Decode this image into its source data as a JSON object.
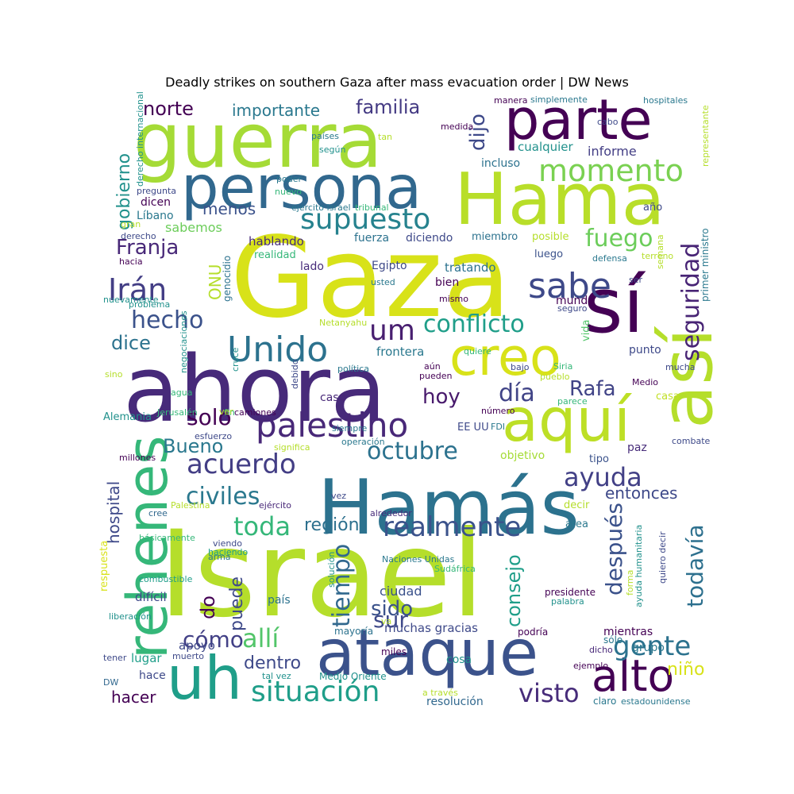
{
  "title": "Deadly strikes on southern Gaza after mass evacuation order | DW News",
  "words": [
    {
      "t": "Israel",
      "c": "#b5de2b"
    },
    {
      "t": "Gaza",
      "c": "#d8e219"
    },
    {
      "t": "ahora",
      "c": "#472a7a"
    },
    {
      "t": "Hamás",
      "c": "#2c728e"
    },
    {
      "t": "ataque",
      "c": "#3b528b"
    },
    {
      "t": "guerra",
      "c": "#a5db36"
    },
    {
      "t": "Hama",
      "c": "#b8de29"
    },
    {
      "t": "persona",
      "c": "#31688e"
    },
    {
      "t": "parte",
      "c": "#440154"
    },
    {
      "t": "sí",
      "c": "#440154"
    },
    {
      "t": "así",
      "c": "#b5de2b"
    },
    {
      "t": "aquí",
      "c": "#bddf26"
    },
    {
      "t": "creo",
      "c": "#d8e219"
    },
    {
      "t": "rehenes",
      "c": "#35b779"
    },
    {
      "t": "uh",
      "c": "#1f9e89"
    },
    {
      "t": "alto",
      "c": "#440154"
    },
    {
      "t": "palestino",
      "c": "#482878"
    },
    {
      "t": "Unido",
      "c": "#2c728e"
    },
    {
      "t": "seguridad",
      "c": "#482475"
    },
    {
      "t": "supuesto",
      "c": "#26828e"
    },
    {
      "t": "momento",
      "c": "#7ad151"
    },
    {
      "t": "sabe",
      "c": "#3e4989"
    },
    {
      "t": "situación",
      "c": "#1f9e89"
    },
    {
      "t": "realmente",
      "c": "#3b528b"
    },
    {
      "t": "conflicto",
      "c": "#1f9e89"
    },
    {
      "t": "um",
      "c": "#481f70"
    },
    {
      "t": "Irán",
      "c": "#433e85"
    },
    {
      "t": "Franja",
      "c": "#482878"
    },
    {
      "t": "acuerdo",
      "c": "#433e85"
    },
    {
      "t": "civiles",
      "c": "#2a788e"
    },
    {
      "t": "ayuda",
      "c": "#424086"
    },
    {
      "t": "gente",
      "c": "#2c728e"
    },
    {
      "t": "visto",
      "c": "#472c7a"
    },
    {
      "t": "todavía",
      "c": "#2d708e"
    },
    {
      "t": "después",
      "c": "#3b528b"
    },
    {
      "t": "toda",
      "c": "#35b779"
    },
    {
      "t": "tiempo",
      "c": "#31688e"
    },
    {
      "t": "allí",
      "c": "#52c569"
    },
    {
      "t": "hecho",
      "c": "#3b528b"
    },
    {
      "t": "octubre",
      "c": "#2c728e"
    },
    {
      "t": "día",
      "c": "#414487"
    },
    {
      "t": "fuego",
      "c": "#6ccd5a"
    },
    {
      "t": "norte",
      "c": "#440154"
    },
    {
      "t": "familia",
      "c": "#443a83"
    },
    {
      "t": "dijo",
      "c": "#3e4989"
    },
    {
      "t": "hoy",
      "c": "#481a6c"
    },
    {
      "t": "solo",
      "c": "#440154"
    },
    {
      "t": "Rafa",
      "c": "#414487"
    },
    {
      "t": "dice",
      "c": "#2c728e"
    },
    {
      "t": "Bueno",
      "c": "#2a788e"
    },
    {
      "t": "cómo",
      "c": "#424086"
    },
    {
      "t": "región",
      "c": "#2d708e"
    },
    {
      "t": "sur",
      "c": "#3e4989"
    },
    {
      "t": "sido",
      "c": "#3b528b"
    },
    {
      "t": "consejo",
      "c": "#1f9e89"
    },
    {
      "t": "entonces",
      "c": "#3e4989"
    },
    {
      "t": "importante",
      "c": "#2a788e"
    },
    {
      "t": "gobierno",
      "c": "#21918c"
    },
    {
      "t": "puede",
      "c": "#3e4989"
    },
    {
      "t": "hospital",
      "c": "#3e4989"
    },
    {
      "t": "do",
      "c": "#440154"
    },
    {
      "t": "dentro",
      "c": "#3e4989"
    },
    {
      "t": "hacer",
      "c": "#440154"
    },
    {
      "t": "niño",
      "c": "#d8e219"
    },
    {
      "t": "informe",
      "c": "#433e85"
    },
    {
      "t": "menos",
      "c": "#3b528b"
    },
    {
      "t": "ONU",
      "c": "#b5de2b"
    },
    {
      "t": "sabemos",
      "c": "#6ccd5a"
    },
    {
      "t": "resolución",
      "c": "#31688e"
    },
    {
      "t": "ciudad",
      "c": "#3b528b"
    },
    {
      "t": "muchas gracias",
      "c": "#3e4989"
    },
    {
      "t": "EE UU",
      "c": "#3e4989"
    },
    {
      "t": "caso",
      "c": "#482878"
    },
    {
      "t": "frontera",
      "c": "#2a788e"
    },
    {
      "t": "Egipto",
      "c": "#3e4989"
    },
    {
      "t": "tratando",
      "c": "#2c728e"
    },
    {
      "t": "hablando",
      "c": "#472c7a"
    },
    {
      "t": "realidad",
      "c": "#35b779"
    },
    {
      "t": "lado",
      "c": "#472c7a"
    },
    {
      "t": "fuerza",
      "c": "#2c728e"
    },
    {
      "t": "diciendo",
      "c": "#3e4989"
    },
    {
      "t": "miembro",
      "c": "#2c728e"
    },
    {
      "t": "posible",
      "c": "#b5de2b"
    },
    {
      "t": "luego",
      "c": "#3b528b"
    },
    {
      "t": "bien",
      "c": "#440154"
    },
    {
      "t": "mundo",
      "c": "#440154"
    },
    {
      "t": "vida",
      "c": "#52c569"
    },
    {
      "t": "punto",
      "c": "#3e4989"
    },
    {
      "t": "paz",
      "c": "#472c7a"
    },
    {
      "t": "tipo",
      "c": "#3b528b"
    },
    {
      "t": "objetivo",
      "c": "#a5db36"
    },
    {
      "t": "casa",
      "c": "#c0df25"
    },
    {
      "t": "decir",
      "c": "#b5de2b"
    },
    {
      "t": "área",
      "c": "#2a788e"
    },
    {
      "t": "incluso",
      "c": "#2c728e"
    },
    {
      "t": "cualquier",
      "c": "#21918c"
    },
    {
      "t": "año",
      "c": "#3e4989"
    },
    {
      "t": "dicen",
      "c": "#440154"
    },
    {
      "t": "Líbano",
      "c": "#2a788e"
    },
    {
      "t": "genocidio",
      "c": "#2c728e"
    },
    {
      "t": "primer ministro",
      "c": "#2a788e"
    },
    {
      "t": "Alemania",
      "c": "#21918c"
    },
    {
      "t": "Medio",
      "c": "#440154"
    },
    {
      "t": "mucha",
      "c": "#3e4989"
    },
    {
      "t": "combate",
      "c": "#3e4989"
    },
    {
      "t": "grupo",
      "c": "#2a788e"
    },
    {
      "t": "mientras",
      "c": "#440154"
    },
    {
      "t": "sólo",
      "c": "#2a788e"
    },
    {
      "t": "dicho",
      "c": "#482878"
    },
    {
      "t": "ejemplo",
      "c": "#440154"
    },
    {
      "t": "claro",
      "c": "#2a788e"
    },
    {
      "t": "estadounidense",
      "c": "#2a788e"
    },
    {
      "t": "podría",
      "c": "#440154"
    },
    {
      "t": "mayoría",
      "c": "#2c728e"
    },
    {
      "t": "miles",
      "c": "#440154"
    },
    {
      "t": "cosa",
      "c": "#21918c"
    },
    {
      "t": "a través",
      "c": "#b5de2b"
    },
    {
      "t": "Medio Oriente",
      "c": "#21918c"
    },
    {
      "t": "tal vez",
      "c": "#21918c"
    },
    {
      "t": "apoyo",
      "c": "#3e4989"
    },
    {
      "t": "lugar",
      "c": "#1f9e89"
    },
    {
      "t": "hace",
      "c": "#3e4989"
    },
    {
      "t": "difícil",
      "c": "#3e4989"
    },
    {
      "t": "muerto",
      "c": "#3e4989"
    },
    {
      "t": "tener",
      "c": "#3e4989"
    },
    {
      "t": "DW",
      "c": "#31688e"
    },
    {
      "t": "liberación",
      "c": "#21918c"
    },
    {
      "t": "combustible",
      "c": "#1f9e89"
    },
    {
      "t": "respuesta",
      "c": "#d8e219"
    },
    {
      "t": "básicamente",
      "c": "#35b779"
    },
    {
      "t": "cree",
      "c": "#31688e"
    },
    {
      "t": "Palestina",
      "c": "#b5de2b"
    },
    {
      "t": "ejército",
      "c": "#482878"
    },
    {
      "t": "millones",
      "c": "#440154"
    },
    {
      "t": "esfuerzo",
      "c": "#3e4989"
    },
    {
      "t": "Jerusalén",
      "c": "#35b779"
    },
    {
      "t": "fin",
      "c": "#35b779"
    },
    {
      "t": "agua",
      "c": "#35b779"
    },
    {
      "t": "negociaciones",
      "c": "#21918c"
    },
    {
      "t": "cruce",
      "c": "#21918c"
    },
    {
      "t": "debido",
      "c": "#3e4989"
    },
    {
      "t": "camiones",
      "c": "#440154"
    },
    {
      "t": "ver",
      "c": "#b5de2b"
    },
    {
      "t": "significa",
      "c": "#b5de2b"
    },
    {
      "t": "operación",
      "c": "#2a788e"
    },
    {
      "t": "siempre",
      "c": "#2a788e"
    },
    {
      "t": "aún",
      "c": "#440154"
    },
    {
      "t": "pueden",
      "c": "#440154"
    },
    {
      "t": "política",
      "c": "#2a788e"
    },
    {
      "t": "Siria",
      "c": "#35b779"
    },
    {
      "t": "bajo",
      "c": "#3e4989"
    },
    {
      "t": "pueblo",
      "c": "#b5de2b"
    },
    {
      "t": "parece",
      "c": "#35b779"
    },
    {
      "t": "número",
      "c": "#440154"
    },
    {
      "t": "FDI",
      "c": "#2a788e"
    },
    {
      "t": "alrededor",
      "c": "#472c7a"
    },
    {
      "t": "Naciones Unidas",
      "c": "#2a788e"
    },
    {
      "t": "solución",
      "c": "#21918c"
    },
    {
      "t": "Sudáfrica",
      "c": "#35b779"
    },
    {
      "t": "viendo",
      "c": "#3e4989"
    },
    {
      "t": "haciendo",
      "c": "#1f9e89"
    },
    {
      "t": "arma",
      "c": "#2a788e"
    },
    {
      "t": "país",
      "c": "#2c728e"
    },
    {
      "t": "va",
      "c": "#b5de2b"
    },
    {
      "t": "presidente",
      "c": "#440154"
    },
    {
      "t": "palabra",
      "c": "#21918c"
    },
    {
      "t": "forma",
      "c": "#b5de2b"
    },
    {
      "t": "ayuda humanitaria",
      "c": "#21918c"
    },
    {
      "t": "quiero decir",
      "c": "#3e4989"
    },
    {
      "t": "vez",
      "c": "#3e4989"
    },
    {
      "t": "quiere",
      "c": "#35b779"
    },
    {
      "t": "Netanyahu",
      "c": "#b5de2b"
    },
    {
      "t": "usted",
      "c": "#2a788e"
    },
    {
      "t": "mismo",
      "c": "#440154"
    },
    {
      "t": "seguro",
      "c": "#3e4989"
    },
    {
      "t": "ser",
      "c": "#3e4989"
    },
    {
      "t": "terreno",
      "c": "#b5de2b"
    },
    {
      "t": "semana",
      "c": "#b5de2b"
    },
    {
      "t": "defensa",
      "c": "#2a788e"
    },
    {
      "t": "problema",
      "c": "#21918c"
    },
    {
      "t": "nuevamente",
      "c": "#21918c"
    },
    {
      "t": "hacia",
      "c": "#440154"
    },
    {
      "t": "derecho",
      "c": "#3e4989"
    },
    {
      "t": "gran",
      "c": "#b5de2b"
    },
    {
      "t": "pregunta",
      "c": "#3e4989"
    },
    {
      "t": "derecho internacional",
      "c": "#21918c"
    },
    {
      "t": "nuevo",
      "c": "#35b779"
    },
    {
      "t": "poder",
      "c": "#2a788e"
    },
    {
      "t": "según",
      "c": "#21918c"
    },
    {
      "t": "países",
      "c": "#2a788e"
    },
    {
      "t": "tan",
      "c": "#b5de2b"
    },
    {
      "t": "medida",
      "c": "#440154"
    },
    {
      "t": "manera",
      "c": "#440154"
    },
    {
      "t": "simplemente",
      "c": "#2a788e"
    },
    {
      "t": "hospitales",
      "c": "#2a788e"
    },
    {
      "t": "cabo",
      "c": "#3e4989"
    },
    {
      "t": "representante",
      "c": "#b5de2b"
    },
    {
      "t": "ejército Israel",
      "c": "#2a788e"
    },
    {
      "t": "tribunal",
      "c": "#35b779"
    },
    {
      "t": "sino",
      "c": "#b5de2b"
    }
  ]
}
